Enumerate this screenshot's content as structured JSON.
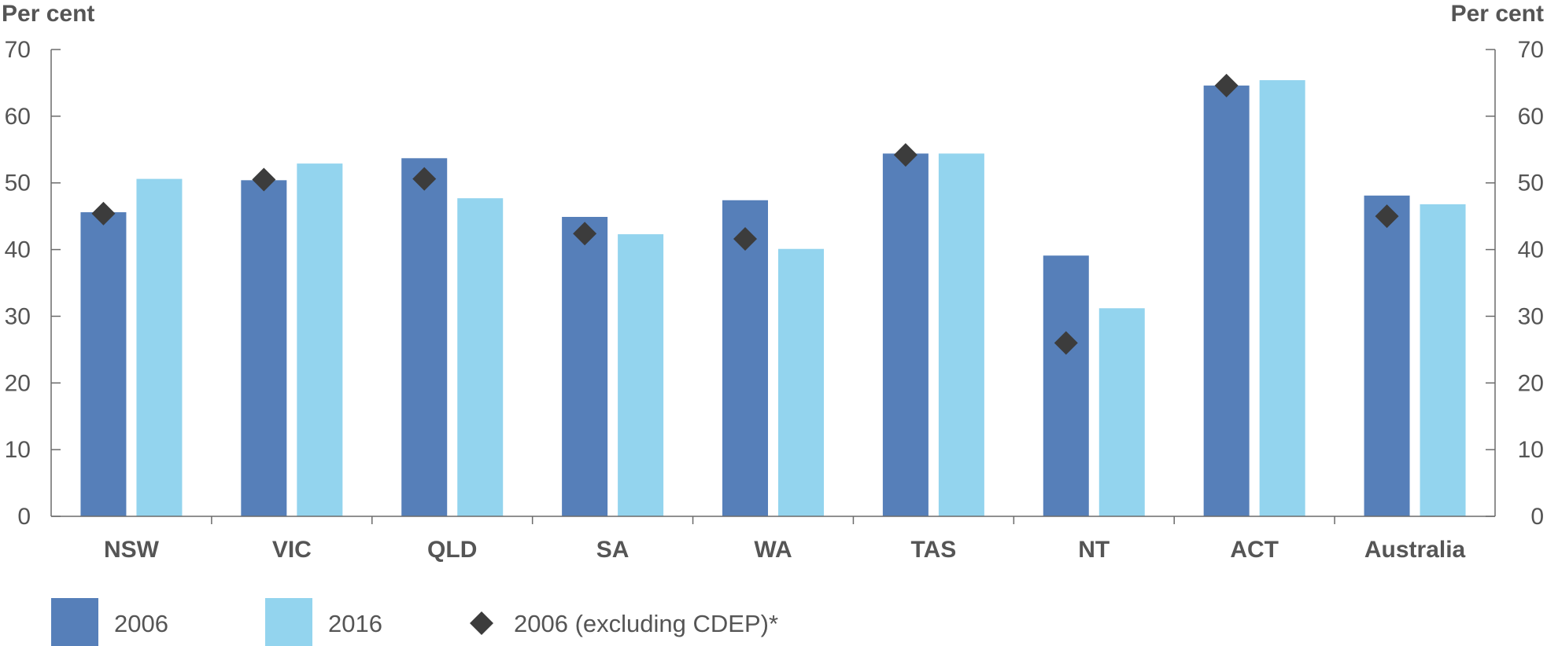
{
  "chart_data": {
    "type": "bar",
    "left_axis_label": "Per cent",
    "right_axis_label": "Per cent",
    "categories": [
      "NSW",
      "VIC",
      "QLD",
      "SA",
      "WA",
      "TAS",
      "NT",
      "ACT",
      "Australia"
    ],
    "ylim": [
      0,
      70
    ],
    "yticks": [
      0,
      10,
      20,
      30,
      40,
      50,
      60,
      70
    ],
    "series": [
      {
        "name": "2006",
        "kind": "bar",
        "color": "#567fb9",
        "values": [
          45.6,
          50.4,
          53.7,
          44.9,
          47.4,
          54.4,
          39.1,
          64.6,
          48.1
        ]
      },
      {
        "name": "2016",
        "kind": "bar",
        "color": "#93d4ee",
        "values": [
          50.6,
          52.9,
          47.7,
          42.3,
          40.1,
          54.4,
          31.2,
          65.4,
          46.8
        ]
      },
      {
        "name": "2006 (excluding CDEP)*",
        "kind": "marker",
        "marker": "diamond",
        "color": "#3c3c3c",
        "values": [
          45.4,
          50.5,
          50.6,
          42.4,
          41.6,
          54.2,
          26.0,
          64.6,
          45.0
        ]
      }
    ],
    "grid": false,
    "legend_position": "bottom"
  }
}
